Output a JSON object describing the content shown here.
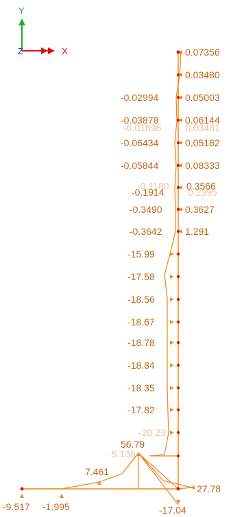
{
  "axes": {
    "y_label": "Y",
    "x_label": "X",
    "z_label": "Z",
    "colors": {
      "y": "#22aa22",
      "x": "#dd1111",
      "z": "#1133cc"
    }
  },
  "colors": {
    "diagram": "#f08a24",
    "label": "#c4651a",
    "label_faint": "#e9c4a6",
    "node": "#cc2200"
  },
  "column_values": {
    "right": [
      "0.07356",
      "0.03480",
      "0.05003",
      "0.06144",
      "0.05182",
      "0.08333",
      "0.3566",
      "0.3627",
      "1.291"
    ],
    "left": [
      "-0.02994",
      "-0.03878",
      "-0.06434",
      "-0.05844",
      "-0.1914",
      "-0.3490",
      "-0.3642"
    ],
    "lower_left": [
      "-15.99",
      "-17.58",
      "-18.56",
      "-18.67",
      "-18.78",
      "-18.84",
      "-18.35",
      "-17.82",
      "-20.23"
    ],
    "faint_overlaps": [
      "-0.01898",
      "0.03481",
      "-0.1180",
      "0.2395",
      "-5.138"
    ]
  },
  "base_values": {
    "peak": "56.79",
    "slope": "7.461",
    "right_end": "27.78",
    "bottom": "-17.04",
    "left_end": "-9.517",
    "left_mid": "-1.995"
  }
}
